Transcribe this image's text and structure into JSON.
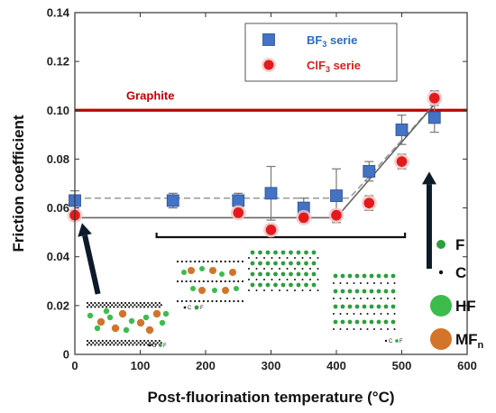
{
  "chart_data": {
    "type": "scatter",
    "xlabel": "Post-fluorination temperature (°C)",
    "ylabel": "Friction coefficient",
    "xlim": [
      0,
      600
    ],
    "ylim": [
      0,
      0.14
    ],
    "x_ticks": [
      "0",
      "100",
      "200",
      "300",
      "400",
      "500",
      "600"
    ],
    "y_ticks": [
      "0",
      "0.02",
      "0.04",
      "0.06",
      "0.08",
      "0.10",
      "0.12",
      "0.14"
    ],
    "grid": false,
    "legend": "top-right",
    "series": [
      {
        "name_main": "BF",
        "name_sub": "3",
        "name_rest": " serie",
        "marker": "square",
        "color": "#4472c4",
        "text_color": "#2f6bbf",
        "points": [
          {
            "x": 0,
            "y": 0.063,
            "err": 0.004
          },
          {
            "x": 150,
            "y": 0.063,
            "err": 0.003
          },
          {
            "x": 250,
            "y": 0.063,
            "err": 0.003
          },
          {
            "x": 300,
            "y": 0.066,
            "err": 0.011
          },
          {
            "x": 350,
            "y": 0.06,
            "err": 0.004
          },
          {
            "x": 400,
            "y": 0.065,
            "err": 0.011
          },
          {
            "x": 450,
            "y": 0.075,
            "err": 0.004
          },
          {
            "x": 500,
            "y": 0.092,
            "err": 0.006
          },
          {
            "x": 550,
            "y": 0.097,
            "err": 0.006
          }
        ]
      },
      {
        "name_main": "ClF",
        "name_sub": "3",
        "name_rest": " serie",
        "marker": "circle",
        "color": "#e31a1c",
        "text_color": "#d42020",
        "points": [
          {
            "x": 0,
            "y": 0.057,
            "err": 0.002
          },
          {
            "x": 250,
            "y": 0.058,
            "err": 0.002
          },
          {
            "x": 300,
            "y": 0.051,
            "err": 0.002
          },
          {
            "x": 350,
            "y": 0.056,
            "err": 0.002
          },
          {
            "x": 400,
            "y": 0.057,
            "err": 0.002
          },
          {
            "x": 450,
            "y": 0.062,
            "err": 0.003
          },
          {
            "x": 500,
            "y": 0.079,
            "err": 0.003
          },
          {
            "x": 550,
            "y": 0.105,
            "err": 0.003
          }
        ]
      }
    ],
    "reference_line": {
      "label": "Graphite",
      "y": 0.1,
      "color": "#c00000"
    },
    "trend_lines": [
      {
        "style": "dashed",
        "color": "#999999",
        "points": [
          [
            0,
            0.064
          ],
          [
            420,
            0.064
          ],
          [
            555,
            0.104
          ]
        ]
      },
      {
        "style": "solid",
        "color": "#666666",
        "points": [
          [
            0,
            0.056
          ],
          [
            400,
            0.056
          ],
          [
            555,
            0.104
          ]
        ]
      }
    ],
    "structure_legend": [
      {
        "label": "F",
        "sub": "",
        "color": "#2e9e3e",
        "size": "small"
      },
      {
        "label": "C",
        "sub": "",
        "color": "#111111",
        "size": "dot"
      },
      {
        "label": "HF",
        "sub": "",
        "color": "#3cbc4c",
        "size": "large"
      },
      {
        "label": "MF",
        "sub": "n",
        "color": "#d2752a",
        "size": "large"
      }
    ],
    "inset_labels": {
      "c": "C",
      "f": "F"
    }
  }
}
